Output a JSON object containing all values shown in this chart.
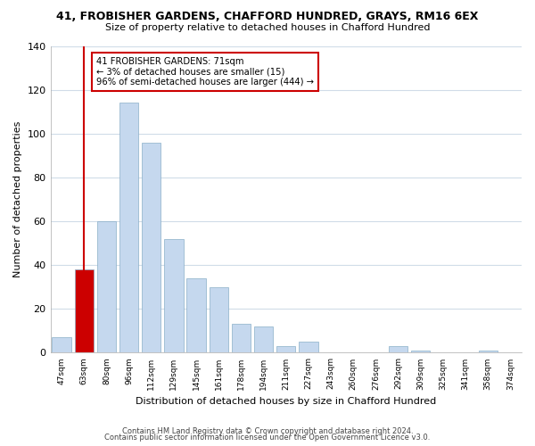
{
  "title": "41, FROBISHER GARDENS, CHAFFORD HUNDRED, GRAYS, RM16 6EX",
  "subtitle": "Size of property relative to detached houses in Chafford Hundred",
  "xlabel": "Distribution of detached houses by size in Chafford Hundred",
  "ylabel": "Number of detached properties",
  "bar_labels": [
    "47sqm",
    "63sqm",
    "80sqm",
    "96sqm",
    "112sqm",
    "129sqm",
    "145sqm",
    "161sqm",
    "178sqm",
    "194sqm",
    "211sqm",
    "227sqm",
    "243sqm",
    "260sqm",
    "276sqm",
    "292sqm",
    "309sqm",
    "325sqm",
    "341sqm",
    "358sqm",
    "374sqm"
  ],
  "bar_values": [
    7,
    38,
    60,
    114,
    96,
    52,
    34,
    30,
    13,
    12,
    3,
    5,
    0,
    0,
    0,
    3,
    1,
    0,
    0,
    1,
    0
  ],
  "bar_color": "#c5d8ee",
  "highlight_bar_index": 1,
  "highlight_bar_color": "#cc0000",
  "vline_x": 1,
  "vline_color": "#cc0000",
  "annotation_text": "41 FROBISHER GARDENS: 71sqm\n← 3% of detached houses are smaller (15)\n96% of semi-detached houses are larger (444) →",
  "annotation_box_facecolor": "#ffffff",
  "annotation_box_edgecolor": "#cc0000",
  "ylim": [
    0,
    140
  ],
  "yticks": [
    0,
    20,
    40,
    60,
    80,
    100,
    120,
    140
  ],
  "footer_line1": "Contains HM Land Registry data © Crown copyright and database right 2024.",
  "footer_line2": "Contains public sector information licensed under the Open Government Licence v3.0.",
  "background_color": "#ffffff",
  "plot_bg_color": "#ffffff",
  "grid_color": "#d0dce8"
}
